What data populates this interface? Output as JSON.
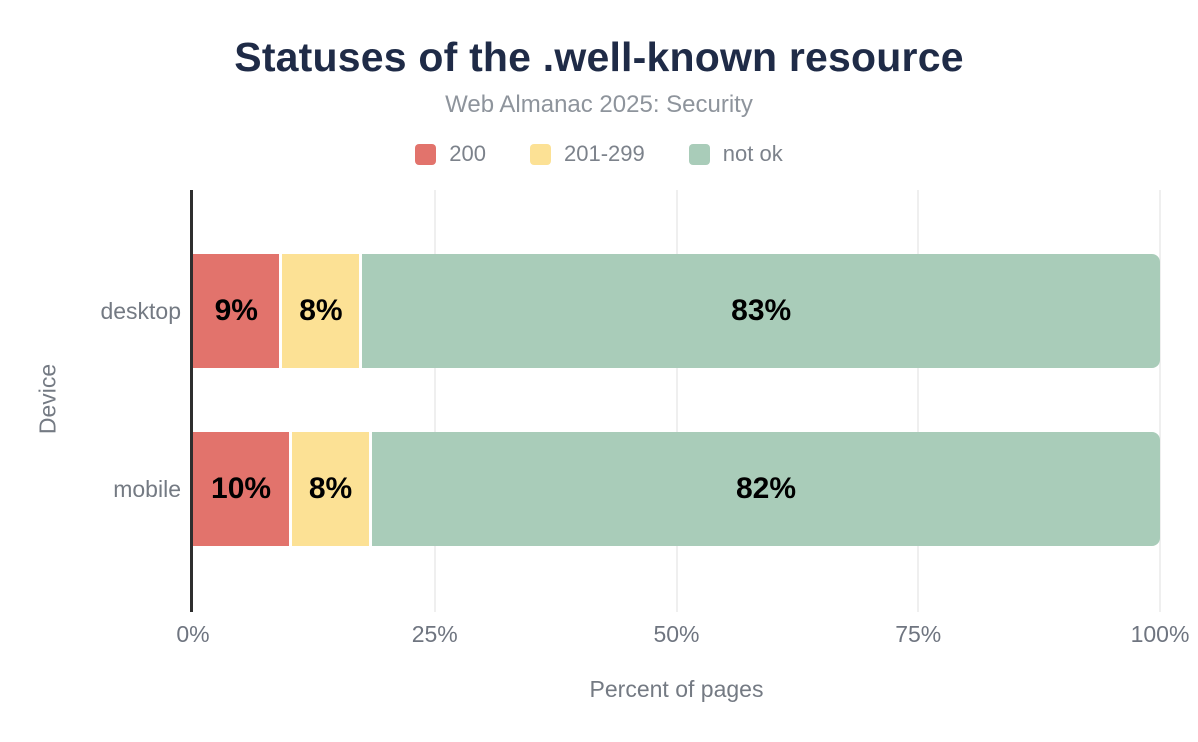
{
  "chart_data": {
    "type": "bar",
    "orientation": "horizontal",
    "stacked": true,
    "title": "Statuses of the .well-known resource",
    "subtitle": "Web Almanac 2025: Security",
    "xlabel": "Percent of pages",
    "ylabel": "Device",
    "categories": [
      "desktop",
      "mobile"
    ],
    "series": [
      {
        "name": "200",
        "color": "#e2736c",
        "values": [
          9,
          10
        ]
      },
      {
        "name": "201-299",
        "color": "#fce195",
        "values": [
          8,
          8
        ]
      },
      {
        "name": "not ok",
        "color": "#a9ccb9",
        "values": [
          83,
          82
        ]
      }
    ],
    "xlim": [
      0,
      100
    ],
    "x_ticks": [
      0,
      25,
      50,
      75,
      100
    ],
    "x_tick_suffix": "%",
    "value_label_suffix": "%",
    "grid": "vertical",
    "legend_position": "top"
  },
  "colors": {
    "background": "#ffffff",
    "title": "#1f2b47",
    "subtitle": "#8e949c",
    "axis_text": "#747a83",
    "value_label": "#000000",
    "axis_line": "#2e2e2e",
    "gridline": "#efefef"
  }
}
